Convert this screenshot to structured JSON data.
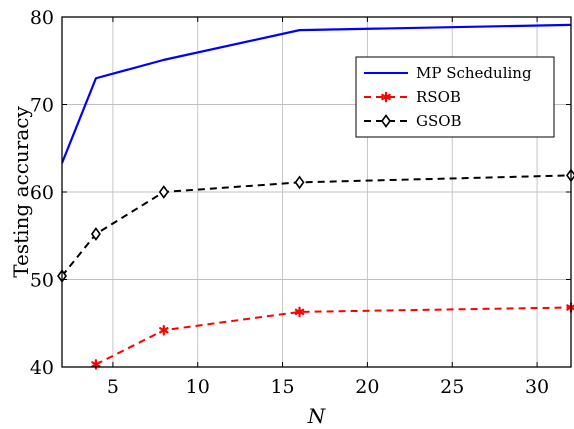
{
  "chart_data": {
    "type": "line",
    "xlabel": "N",
    "ylabel": "Testing accuracy",
    "xlim": [
      2,
      32
    ],
    "ylim": [
      40,
      80
    ],
    "xticks": [
      5,
      10,
      15,
      20,
      25,
      30
    ],
    "yticks": [
      40,
      50,
      60,
      70,
      80
    ],
    "grid": true,
    "legend_position": "top-right",
    "series": [
      {
        "name": "MP Scheduling",
        "color": "#0000ff",
        "style": "solid",
        "marker": "none",
        "x": [
          2,
          4,
          8,
          16,
          32
        ],
        "values": [
          63.3,
          73.0,
          75.1,
          78.5,
          79.1
        ]
      },
      {
        "name": "RSOB",
        "color": "#ff0000",
        "style": "dashed",
        "marker": "asterisk",
        "x": [
          4,
          8,
          16,
          32
        ],
        "values": [
          40.3,
          44.2,
          46.3,
          46.8
        ]
      },
      {
        "name": "GSOB",
        "color": "#000000",
        "style": "dashed",
        "marker": "diamond",
        "x": [
          2,
          4,
          8,
          16,
          32
        ],
        "values": [
          50.4,
          55.2,
          60.0,
          61.1,
          61.9
        ]
      }
    ]
  }
}
